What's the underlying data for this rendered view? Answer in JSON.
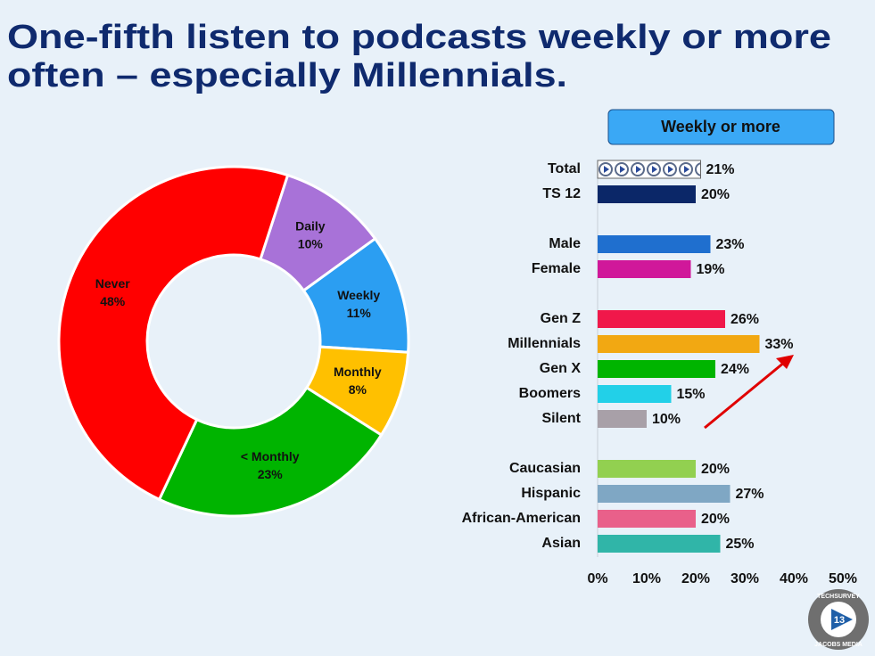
{
  "title": [
    "One-fifth listen to podcasts weekly or more",
    "often – especially Millennials."
  ],
  "logo": {
    "top": "TECHSURVEY",
    "number": "13",
    "bottom": "JACOBS MEDIA"
  },
  "chart_data": [
    {
      "type": "donut",
      "categories": [
        "Daily",
        "Weekly",
        "Monthly",
        "< Monthly",
        "Never"
      ],
      "values": [
        10,
        11,
        8,
        23,
        48
      ],
      "value_labels": [
        "10%",
        "11%",
        "8%",
        "23%",
        "48%"
      ],
      "colors": [
        "#a872d8",
        "#2b9ef2",
        "#ffc000",
        "#00b400",
        "#ff0000"
      ]
    },
    {
      "type": "hbar",
      "title": "Weekly or more",
      "categories": [
        "Total",
        "TS 12",
        null,
        "Male",
        "Female",
        null,
        "Gen Z",
        "Millennials",
        "Gen X",
        "Boomers",
        "Silent",
        null,
        "Caucasian",
        "Hispanic",
        "African-American",
        "Asian"
      ],
      "values": [
        21,
        20,
        null,
        23,
        19,
        null,
        26,
        33,
        24,
        15,
        10,
        null,
        20,
        27,
        20,
        25
      ],
      "value_labels": [
        "21%",
        "20%",
        null,
        "23%",
        "19%",
        null,
        "26%",
        "33%",
        "24%",
        "15%",
        "10%",
        null,
        "20%",
        "27%",
        "20%",
        "25%"
      ],
      "colors": [
        "#ffffff",
        "#0b2768",
        null,
        "#1f6fcf",
        "#d0189a",
        null,
        "#f0184a",
        "#f2a812",
        "#00b400",
        "#22d0e8",
        "#a8a0a8",
        null,
        "#92d050",
        "#7fa7c4",
        "#e9608a",
        "#30b5a8"
      ],
      "xlim": [
        0,
        50
      ],
      "xticks": [
        {
          "value": 0,
          "label": "0%"
        },
        {
          "value": 10,
          "label": "10%"
        },
        {
          "value": 20,
          "label": "20%"
        },
        {
          "value": 30,
          "label": "30%"
        },
        {
          "value": 40,
          "label": "40%"
        },
        {
          "value": 50,
          "label": "50%"
        }
      ]
    }
  ]
}
